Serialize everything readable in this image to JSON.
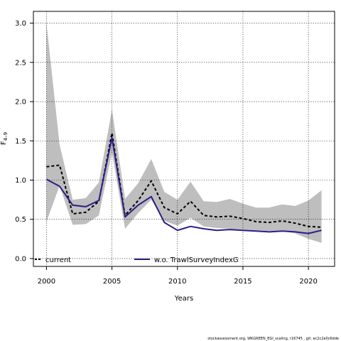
{
  "chart_data": {
    "type": "line",
    "xlabel": "Years",
    "ylabel": "F",
    "ylabel_sub": "4–9",
    "xlim": [
      1999,
      2022
    ],
    "ylim": [
      -0.1,
      3.15
    ],
    "xticks": [
      2000,
      2005,
      2010,
      2015,
      2020
    ],
    "yticks": [
      0.0,
      0.5,
      1.0,
      1.5,
      2.0,
      2.5,
      3.0
    ],
    "ytick_labels": [
      "0.0",
      "0.5",
      "1.0",
      "1.5",
      "2.0",
      "2.5",
      "3.0"
    ],
    "grid": true,
    "legend_position": "bottom",
    "x": [
      2000,
      2001,
      2002,
      2003,
      2004,
      2005,
      2006,
      2007,
      2008,
      2009,
      2010,
      2011,
      2012,
      2013,
      2014,
      2015,
      2016,
      2017,
      2018,
      2019,
      2020,
      2021
    ],
    "band": {
      "color": "#bebebe",
      "upper": [
        3.0,
        1.45,
        0.75,
        0.77,
        0.97,
        1.9,
        0.76,
        0.96,
        1.27,
        0.85,
        0.75,
        0.98,
        0.73,
        0.72,
        0.76,
        0.7,
        0.65,
        0.65,
        0.69,
        0.67,
        0.74,
        0.87
      ],
      "lower": [
        0.47,
        0.93,
        0.43,
        0.44,
        0.55,
        1.35,
        0.38,
        0.58,
        0.75,
        0.48,
        0.42,
        0.52,
        0.41,
        0.39,
        0.38,
        0.37,
        0.36,
        0.35,
        0.35,
        0.32,
        0.25,
        0.2
      ]
    },
    "series": [
      {
        "name": "current",
        "color": "#000000",
        "style": "dashed",
        "values": [
          1.17,
          1.19,
          0.57,
          0.59,
          0.73,
          1.6,
          0.55,
          0.74,
          0.99,
          0.65,
          0.57,
          0.73,
          0.55,
          0.53,
          0.54,
          0.51,
          0.47,
          0.46,
          0.48,
          0.45,
          0.41,
          0.4
        ]
      },
      {
        "name": "w.o. TrawlSurveyIndexG",
        "color": "#2c1d86",
        "style": "solid",
        "values": [
          1.01,
          0.92,
          0.68,
          0.66,
          0.74,
          1.54,
          0.53,
          0.68,
          0.79,
          0.46,
          0.36,
          0.41,
          0.38,
          0.36,
          0.37,
          0.36,
          0.35,
          0.34,
          0.35,
          0.34,
          0.32,
          0.36
        ]
      }
    ]
  },
  "footer": "stockassessment.org, WKGREEN_EGI_scaling, r16745 , git: ec2c2a0c6dde"
}
